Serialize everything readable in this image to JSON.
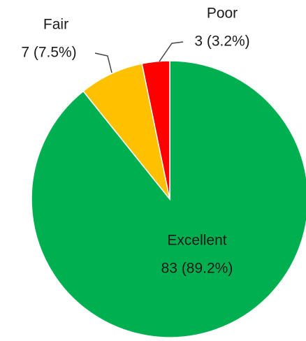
{
  "chart_data": {
    "type": "pie",
    "categories": [
      "Excellent",
      "Fair",
      "Poor"
    ],
    "values": [
      83,
      7,
      3
    ],
    "value_labels": [
      "83 (89.2%)",
      "7 (7.5%)",
      "3 (3.2%)"
    ],
    "colors": [
      "#00b050",
      "#ffc000",
      "#ff0000"
    ]
  }
}
